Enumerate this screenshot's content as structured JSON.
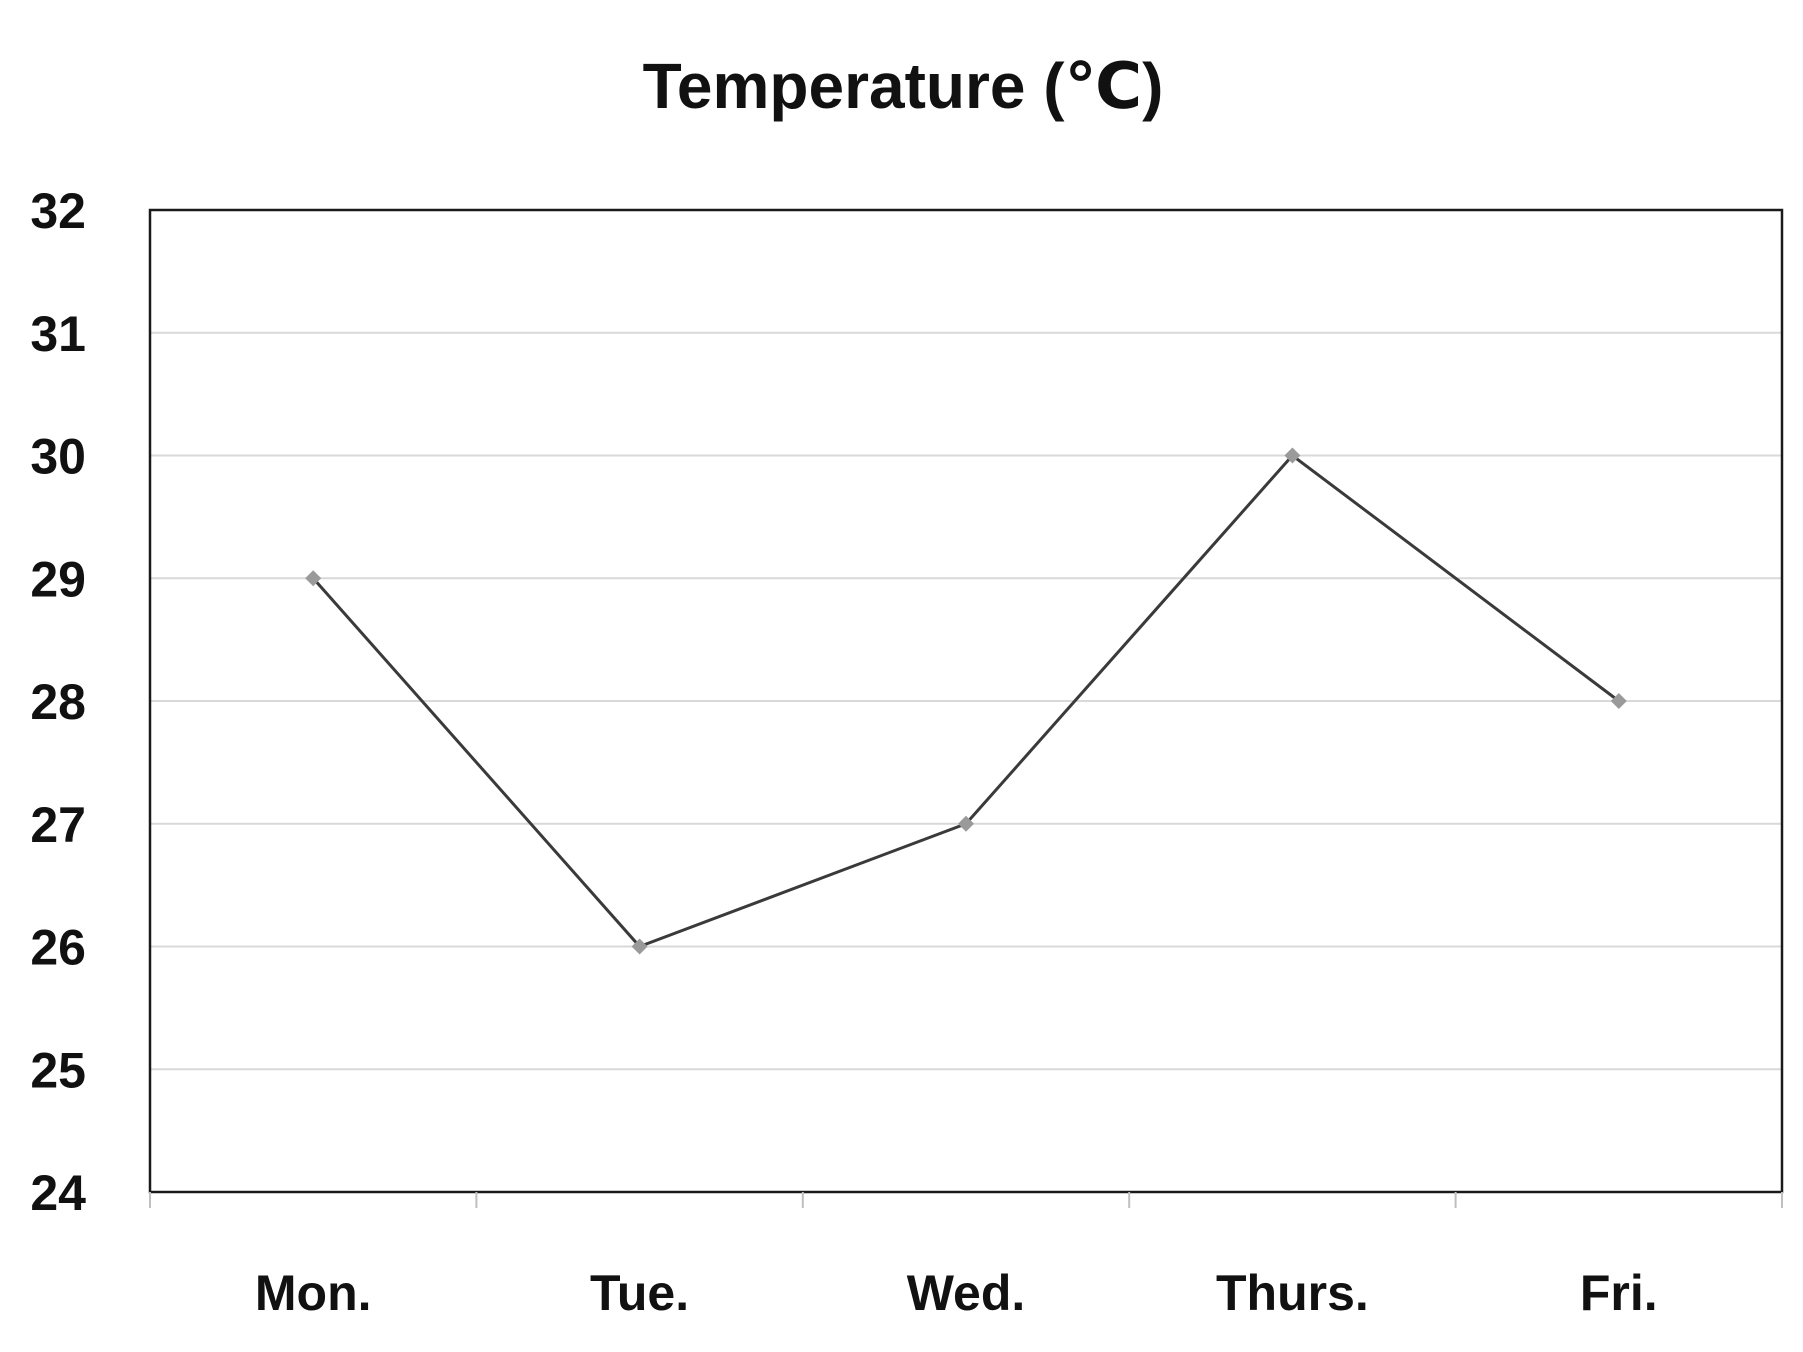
{
  "chart_data": {
    "type": "line",
    "title": "Temperature (℃)",
    "xlabel": "",
    "ylabel": "",
    "categories": [
      "Mon.",
      "Tue.",
      "Wed.",
      "Thurs.",
      "Fri."
    ],
    "series": [
      {
        "values": [
          29,
          26,
          27,
          30,
          28
        ]
      }
    ],
    "ylim": [
      24,
      32
    ],
    "yticks": [
      24,
      25,
      26,
      27,
      28,
      29,
      30,
      31,
      32
    ],
    "grid": true,
    "legend": "none",
    "colors": {
      "line": "#3a3a3a",
      "marker": "#9a9a9a",
      "grid": "#d9d9d9",
      "frame": "#1a1a1a"
    }
  }
}
